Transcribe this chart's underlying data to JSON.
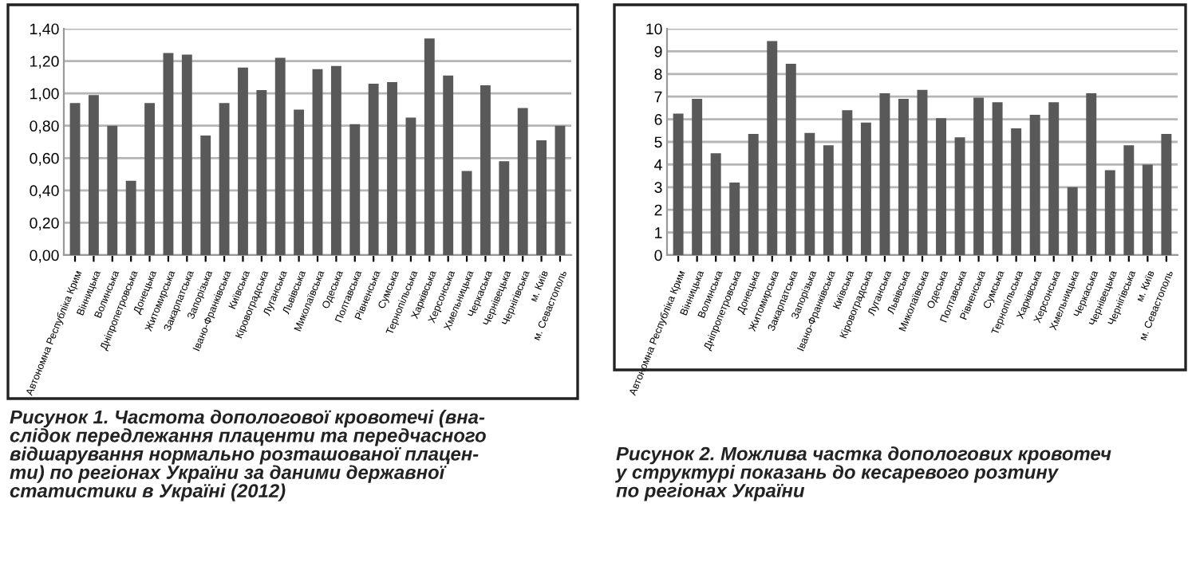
{
  "chart_data": [
    {
      "type": "bar",
      "categories": [
        "Автономна Республіка Крим",
        "Вінницька",
        "Волинська",
        "Дніпропетровська",
        "Донецька",
        "Житомирська",
        "Закарпатська",
        "Запорізька",
        "Івано-Франківська",
        "Київська",
        "Кіровоградська",
        "Луганська",
        "Львівська",
        "Миколаївська",
        "Одеська",
        "Полтавська",
        "Рівненська",
        "Сумська",
        "Тернопільська",
        "Харківська",
        "Херсонська",
        "Хмельницька",
        "Черкаська",
        "Чернівецька",
        "Чернігівська",
        "м. Київ",
        "м. Севастополь"
      ],
      "values": [
        0.94,
        0.99,
        0.8,
        0.46,
        0.94,
        1.25,
        1.24,
        0.74,
        0.94,
        1.16,
        1.02,
        1.22,
        0.9,
        1.15,
        1.17,
        0.81,
        1.06,
        1.07,
        0.85,
        1.34,
        1.11,
        0.52,
        1.05,
        0.58,
        0.91,
        0.71,
        0.8
      ],
      "color": "#595959",
      "ylim": [
        0,
        1.4
      ],
      "yticks": [
        {
          "value": 0,
          "label": "0,00"
        },
        {
          "value": 0.2,
          "label": "0,20"
        },
        {
          "value": 0.4,
          "label": "0,40"
        },
        {
          "value": 0.6,
          "label": "0,60"
        },
        {
          "value": 0.8,
          "label": "0,80"
        },
        {
          "value": 1.0,
          "label": "1,00"
        },
        {
          "value": 1.2,
          "label": "1,20"
        },
        {
          "value": 1.4,
          "label": "1,40"
        }
      ],
      "grid": "y",
      "legend": false,
      "annotations": [
        "Рисунок 1. Частота допологової кровотечі (вна-\nслідок передлежання плаценти та передчасного\nвідшарування нормально розташованої плацен-\nти) по регіонах України за даними державної\nстатистики в Україні (2012)"
      ]
    },
    {
      "type": "bar",
      "categories": [
        "Автономна Республіка Крим",
        "Вінницька",
        "Волинська",
        "Дніпропетровська",
        "Донецька",
        "Житомирська",
        "Закарпатська",
        "Запорізька",
        "Івано-Франківська",
        "Київська",
        "Кіровоградська",
        "Луганська",
        "Львівська",
        "Миколаївська",
        "Одеська",
        "Полтавська",
        "Рівненська",
        "Сумська",
        "Тернопільська",
        "Харківська",
        "Херсонська",
        "Хмельницька",
        "Черкаська",
        "Чернівецька",
        "Чернігівська",
        "м. Київ",
        "м. Севастополь"
      ],
      "values": [
        6.25,
        6.9,
        4.5,
        3.2,
        5.35,
        9.45,
        8.45,
        5.4,
        4.85,
        6.4,
        5.85,
        7.15,
        6.9,
        7.3,
        6.05,
        5.2,
        6.95,
        6.75,
        5.6,
        6.2,
        6.75,
        3.0,
        7.15,
        3.75,
        4.85,
        4.0,
        5.35
      ],
      "color": "#595959",
      "ylim": [
        0,
        10
      ],
      "yticks": [
        0,
        1,
        2,
        3,
        4,
        5,
        6,
        7,
        8,
        9,
        10
      ],
      "grid": "y",
      "legend": false,
      "annotations": [
        "Рисунок 2. Можлива частка допологових кровотеч\nу структурі показань до кесаревого розтину\nпо регіонах України"
      ]
    }
  ]
}
